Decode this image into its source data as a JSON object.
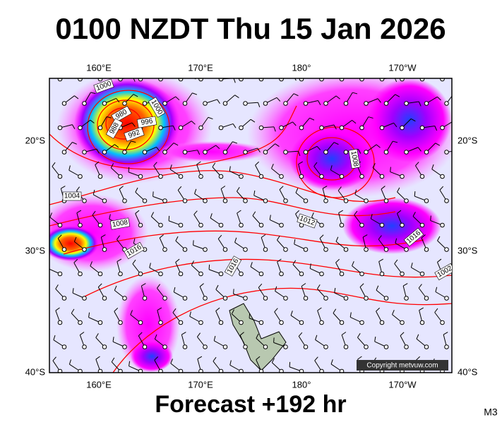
{
  "title": "0100 NZDT Thu 15 Jan 2026",
  "footer": "Forecast +192 hr",
  "model": "M3",
  "copyright": "Copyright metvuw.com",
  "lon_labels": [
    "160°E",
    "170°E",
    "180°",
    "170°W"
  ],
  "lat_labels": [
    "20°S",
    "30°S",
    "40°S"
  ],
  "isobar_labels": [
    "1000",
    "1000",
    "980",
    "988",
    "992",
    "996",
    "1004",
    "1008",
    "1016",
    "1012",
    "1008",
    "1016",
    "1016",
    "1002"
  ]
}
